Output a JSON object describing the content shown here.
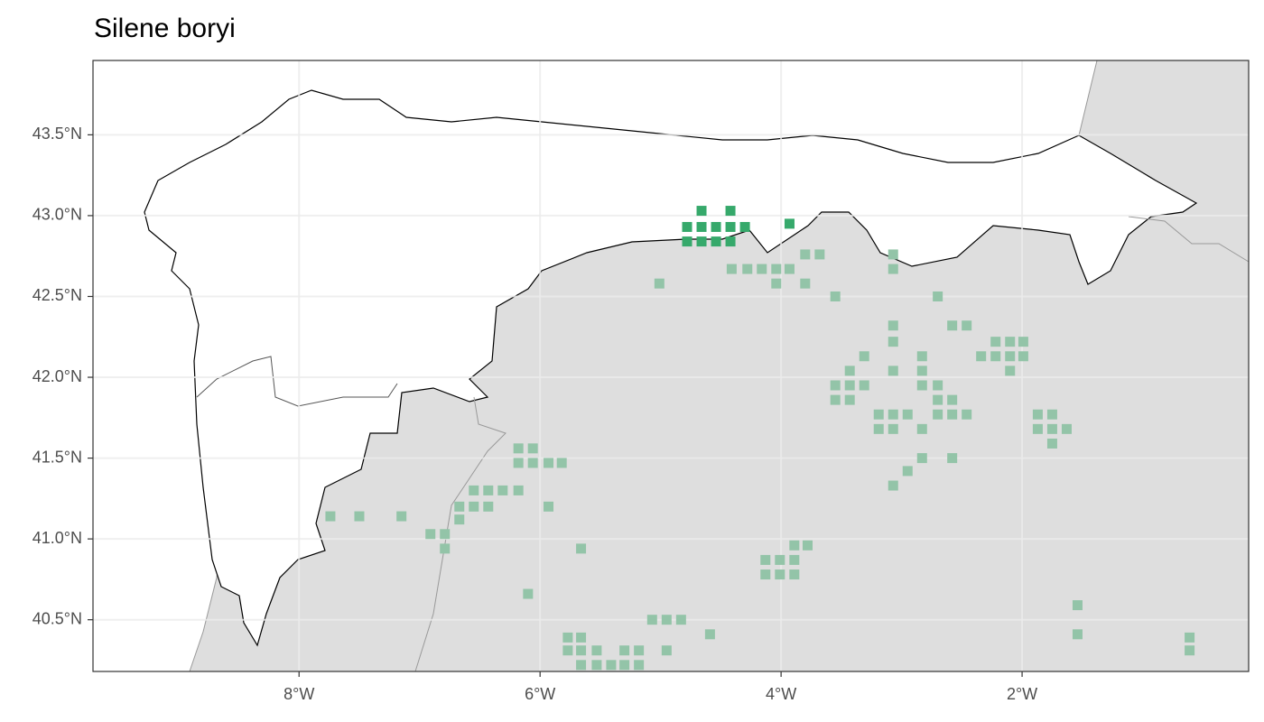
{
  "chart_data": {
    "type": "scatter",
    "title": "Silene boryi",
    "xlim": [
      -9.71,
      -0.12
    ],
    "ylim": [
      40.18,
      43.96
    ],
    "xticks": [
      {
        "value": -8,
        "label": "8°W"
      },
      {
        "value": -6,
        "label": "6°W"
      },
      {
        "value": -4,
        "label": "4°W"
      },
      {
        "value": -2,
        "label": "2°W"
      }
    ],
    "yticks": [
      {
        "value": 40.5,
        "label": "40.5°N"
      },
      {
        "value": 41.0,
        "label": "41.0°N"
      },
      {
        "value": 41.5,
        "label": "41.5°N"
      },
      {
        "value": 42.0,
        "label": "42.0°N"
      },
      {
        "value": 42.5,
        "label": "42.5°N"
      },
      {
        "value": 43.0,
        "label": "43.0°N"
      },
      {
        "value": 43.5,
        "label": "43.5°N"
      }
    ],
    "grid": true,
    "series": [
      {
        "color": "#93c4a8",
        "x": [
          -3.8,
          -3.68,
          -3.07,
          -4.41,
          -4.28,
          -4.16,
          -4.04,
          -3.93,
          -3.07,
          -5.01,
          -4.04,
          -3.8,
          -3.55,
          -2.7,
          -3.07,
          -2.58,
          -2.46,
          -3.07,
          -2.22,
          -2.1,
          -1.99,
          -3.31,
          -2.83,
          -2.34,
          -2.22,
          -2.1,
          -1.99,
          -3.43,
          -3.07,
          -2.83,
          -2.1,
          -3.55,
          -3.43,
          -3.31,
          -2.83,
          -2.7,
          -3.55,
          -3.43,
          -2.7,
          -2.58,
          -3.19,
          -3.07,
          -2.95,
          -2.7,
          -2.58,
          -2.46,
          -1.87,
          -1.75,
          -3.19,
          -3.07,
          -2.83,
          -1.87,
          -1.75,
          -1.63,
          -1.75,
          -6.18,
          -6.06,
          -6.18,
          -6.06,
          -5.93,
          -5.82,
          -2.83,
          -2.58,
          -2.95,
          -3.07,
          -6.55,
          -6.43,
          -6.31,
          -6.18,
          -6.67,
          -6.55,
          -6.43,
          -5.93,
          -7.74,
          -7.5,
          -7.15,
          -6.67,
          -6.91,
          -6.79,
          -6.79,
          -3.89,
          -3.78,
          -5.66,
          -4.13,
          -4.01,
          -3.89,
          -4.13,
          -4.01,
          -3.89,
          -6.1,
          -1.54,
          -5.07,
          -4.95,
          -4.83,
          -4.59,
          -1.54,
          -0.61,
          -5.77,
          -5.66,
          -4.95,
          -5.77,
          -5.66,
          -5.53,
          -5.3,
          -5.18,
          -0.61,
          -5.66,
          -5.53,
          -5.41,
          -5.3,
          -5.18
        ],
        "values": [
          42.76,
          42.76,
          42.76,
          42.67,
          42.67,
          42.67,
          42.67,
          42.67,
          42.67,
          42.58,
          42.58,
          42.58,
          42.5,
          42.5,
          42.32,
          42.32,
          42.32,
          42.22,
          42.22,
          42.22,
          42.22,
          42.13,
          42.13,
          42.13,
          42.13,
          42.13,
          42.13,
          42.04,
          42.04,
          42.04,
          42.04,
          41.95,
          41.95,
          41.95,
          41.95,
          41.95,
          41.86,
          41.86,
          41.86,
          41.86,
          41.77,
          41.77,
          41.77,
          41.77,
          41.77,
          41.77,
          41.77,
          41.77,
          41.68,
          41.68,
          41.68,
          41.68,
          41.68,
          41.68,
          41.59,
          41.56,
          41.56,
          41.47,
          41.47,
          41.47,
          41.47,
          41.5,
          41.5,
          41.42,
          41.33,
          41.3,
          41.3,
          41.3,
          41.3,
          41.2,
          41.2,
          41.2,
          41.2,
          41.14,
          41.14,
          41.14,
          41.12,
          41.03,
          41.03,
          40.94,
          40.96,
          40.96,
          40.94,
          40.87,
          40.87,
          40.87,
          40.78,
          40.78,
          40.78,
          40.66,
          40.59,
          40.5,
          40.5,
          40.5,
          40.41,
          40.41,
          40.39,
          40.39,
          40.39,
          40.31,
          40.31,
          40.31,
          40.31,
          40.31,
          40.31,
          40.31,
          40.22,
          40.22,
          40.22,
          40.22,
          40.22
        ]
      },
      {
        "color": "#36a96b",
        "x": [
          -4.78,
          -4.66,
          -4.66,
          -4.54,
          -4.42,
          -4.42,
          -4.3,
          -4.78,
          -4.66,
          -4.54,
          -4.42,
          -3.93
        ],
        "values": [
          42.93,
          43.03,
          42.93,
          42.93,
          43.03,
          42.93,
          42.93,
          42.84,
          42.84,
          42.84,
          42.84,
          42.95
        ]
      }
    ]
  }
}
